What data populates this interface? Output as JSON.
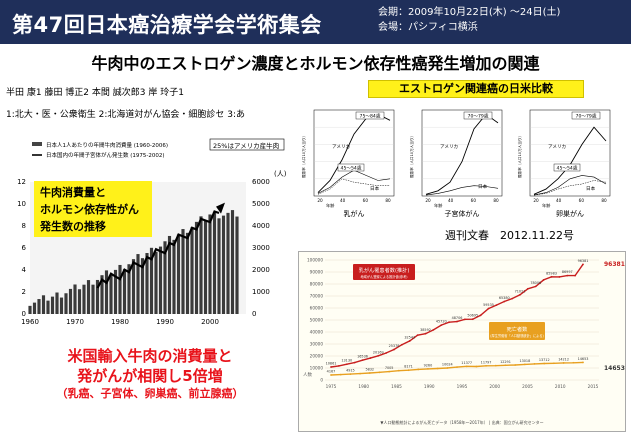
{
  "banner": {
    "title": "第47回日本癌治療学会学術集会",
    "dates": "会期：2009年10月22日(木) 〜24日(土)",
    "venue": "会場：パシフィコ横浜"
  },
  "main_title": "牛肉中のエストロゲン濃度とホルモン依存性癌発生増加の関連",
  "authors": {
    "names": "半田 康1 藤田 博正2 本間 誠次郎3 岸 玲子1",
    "affiliations": "1:北大・医・公衆衛生 2:北海道対がん協会・細胞診セ 3:あ"
  },
  "estrogen_chart_title": "エストロゲン関連癌の日米比較",
  "source": "週刊文春　2012.11.22号",
  "colors": {
    "banner": "#1f2f5a",
    "yellow": "#fff11a",
    "red": "#e8131b",
    "dark_red": "#c81e1e",
    "orange_line": "#e8a020"
  },
  "beef_chart": {
    "legend": [
      "日本人1人あたりの年間牛肉消費量 (1960-2006)",
      "日本国内の年間子宮体がん発生数 (1975-2002)"
    ],
    "annotation": "25%はアメリカ産牛肉",
    "box_lines": [
      "牛肉消費量と",
      "ホルモン依存性がん",
      "発生数の推移"
    ],
    "left_axis_ticks": [
      "12",
      "10",
      "8",
      "6",
      "4",
      "2",
      "0"
    ],
    "right_axis_unit": "(人)",
    "right_axis_ticks": [
      "6000",
      "5000",
      "4000",
      "3000",
      "2000",
      "1000",
      "0"
    ],
    "x_ticks": [
      "1960",
      "1970",
      "1980",
      "1990",
      "2000"
    ]
  },
  "estrogen_panels": [
    {
      "x_label": "乳がん",
      "labels": [
        "75〜84歳",
        "アメリカ",
        "45〜54歳",
        "日本"
      ]
    },
    {
      "x_label": "子宮体がん",
      "labels": [
        "70〜79歳",
        "アメリカ",
        "日本"
      ]
    },
    {
      "x_label": "卵巣がん",
      "labels": [
        "70〜79歳",
        "アメリカ",
        "45〜54歳",
        "日本"
      ]
    }
  ],
  "estrogen_common": {
    "y_axis_label": "罹患率（人口10万人当り）",
    "x_axis_label": "年齢",
    "x_ticks": [
      "20",
      "40",
      "60",
      "80"
    ]
  },
  "trend_chart": {
    "y_axis_unit": "人数",
    "y_ticks": [
      "100000",
      "90000",
      "80000",
      "70000",
      "60000",
      "50000",
      "40000",
      "30000",
      "20000",
      "10000",
      "0"
    ],
    "incidence_title": "乳がん罹患者数(推計)",
    "incidence_sub": "地域がん登録による推計値(参考)",
    "deaths_title": "死亡者数",
    "deaths_sub": "(厚生労働省「人口動態統計」による)",
    "incidence_values": [
      "10861",
      "11765",
      "13130",
      "14467",
      "16536",
      "18280",
      "20169",
      "22530",
      "25378",
      "29381",
      "32543",
      "37369",
      "38592",
      "41758",
      "45720",
      "48195",
      "48706",
      "50549",
      "50695",
      "53898",
      "59535",
      "62382",
      "65380",
      "67819",
      "71021",
      "76041",
      "78006",
      "83378",
      "85983",
      "85898",
      "86997",
      "87002",
      "96381"
    ],
    "deaths_values": [
      "4167",
      "4470",
      "4915",
      "5300",
      "5832",
      "6386",
      "7005",
      "7762",
      "8171",
      "8806",
      "9260",
      "9601",
      "10024",
      "10721",
      "11377",
      "11222",
      "11797",
      "11951",
      "12291",
      "12500",
      "13018",
      "13455",
      "13712",
      "13937",
      "14212",
      "14358",
      "14653"
    ],
    "incidence_end": "96381",
    "deaths_end": "14653",
    "x_ticks": [
      "1975",
      "1980",
      "1985",
      "1990",
      "1995",
      "2000",
      "2005",
      "2010",
      "2015"
    ],
    "footer": "▼人口動態統計によるがん死亡データ（1958年〜2017年） | 出典：国立がん研究センター"
  },
  "conclusion": {
    "line1": "米国輸入牛肉の消費量と",
    "line2": "発がんが相関し5倍増",
    "line3": "（乳癌、子宮体、卵巣癌、前立腺癌）"
  }
}
